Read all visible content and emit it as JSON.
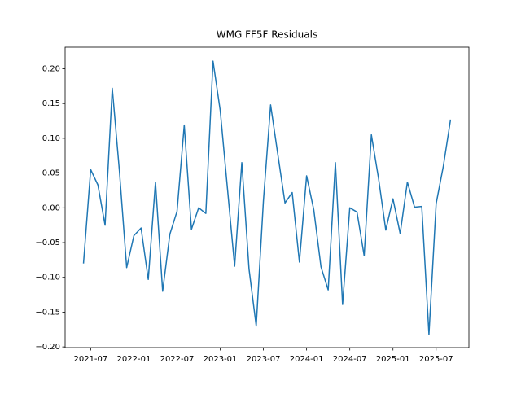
{
  "chart_data": {
    "type": "line",
    "title": "WMG FF5F Residuals",
    "x": [
      "2021-06",
      "2021-07",
      "2021-08",
      "2021-09",
      "2021-10",
      "2021-11",
      "2021-12",
      "2022-01",
      "2022-02",
      "2022-03",
      "2022-04",
      "2022-05",
      "2022-06",
      "2022-07",
      "2022-08",
      "2022-09",
      "2022-10",
      "2022-11",
      "2022-12",
      "2023-01",
      "2023-02",
      "2023-03",
      "2023-04",
      "2023-05",
      "2023-06",
      "2023-07",
      "2023-08",
      "2023-09",
      "2023-10",
      "2023-11",
      "2023-12",
      "2024-01",
      "2024-02",
      "2024-03",
      "2024-04",
      "2024-05",
      "2024-06",
      "2024-07",
      "2024-08",
      "2024-09",
      "2024-10",
      "2024-11",
      "2024-12",
      "2025-01",
      "2025-02",
      "2025-03",
      "2025-04",
      "2025-05",
      "2025-06",
      "2025-07",
      "2025-08",
      "2025-09"
    ],
    "series": [
      {
        "color": "#1f77b4",
        "values": [
          -0.08,
          0.055,
          0.033,
          -0.025,
          0.172,
          0.052,
          -0.086,
          -0.04,
          -0.029,
          -0.103,
          0.037,
          -0.12,
          -0.038,
          -0.005,
          0.119,
          -0.031,
          0.0,
          -0.008,
          0.211,
          0.14,
          0.028,
          -0.084,
          0.065,
          -0.088,
          -0.17,
          0.01,
          0.148,
          0.077,
          0.007,
          0.022,
          -0.078,
          0.046,
          -0.003,
          -0.085,
          -0.118,
          0.065,
          -0.139,
          0.0,
          -0.006,
          -0.069,
          0.105,
          0.042,
          -0.032,
          0.013,
          -0.037,
          0.037,
          0.001,
          0.002,
          -0.182,
          0.006,
          0.06,
          0.127
        ]
      }
    ],
    "xticks": [
      "2021-07",
      "2022-01",
      "2022-07",
      "2023-01",
      "2023-07",
      "2024-01",
      "2024-07",
      "2025-01",
      "2025-07"
    ],
    "ylim": [
      -0.201,
      0.231
    ],
    "yticks": [
      {
        "value": -0.2,
        "label": "−0.20"
      },
      {
        "value": -0.15,
        "label": "−0.15"
      },
      {
        "value": -0.1,
        "label": "−0.10"
      },
      {
        "value": -0.05,
        "label": "−0.05"
      },
      {
        "value": 0,
        "label": "0.00"
      },
      {
        "value": 0.05,
        "label": "0.05"
      },
      {
        "value": 0.1,
        "label": "0.10"
      },
      {
        "value": 0.15,
        "label": "0.15"
      },
      {
        "value": 0.2,
        "label": "0.20"
      }
    ]
  }
}
